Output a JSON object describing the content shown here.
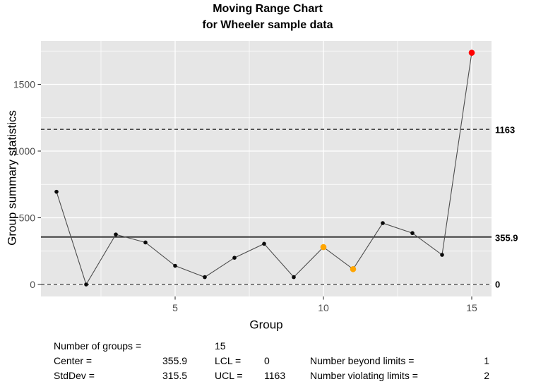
{
  "title": {
    "line1": "Moving Range Chart",
    "line2": "for Wheeler sample data"
  },
  "chart_data": {
    "type": "line",
    "title": "Moving Range Chart for Wheeler sample data",
    "xlabel": "Group",
    "ylabel": "Group summary statistics",
    "x": [
      1,
      2,
      3,
      4,
      5,
      6,
      7,
      8,
      9,
      10,
      11,
      12,
      13,
      14,
      15
    ],
    "values": [
      695,
      0,
      375,
      315,
      140,
      55,
      200,
      305,
      55,
      280,
      115,
      460,
      385,
      222,
      1737
    ],
    "point_states": [
      "normal",
      "normal",
      "normal",
      "normal",
      "normal",
      "normal",
      "normal",
      "normal",
      "normal",
      "run",
      "run",
      "normal",
      "normal",
      "normal",
      "beyond"
    ],
    "x_ticks": [
      5,
      10,
      15
    ],
    "y_ticks": [
      0,
      500,
      1000,
      1500
    ],
    "x_minor": [
      2.5,
      7.5,
      12.5
    ],
    "y_minor": [
      250,
      750,
      1250,
      1750
    ],
    "xlim": [
      1,
      15
    ],
    "ylim": [
      -90,
      1830
    ],
    "center": 355.9,
    "lcl": 0,
    "ucl": 1163,
    "limit_labels": {
      "ucl": "1163",
      "center": "355.9",
      "lcl": "0"
    },
    "grid": true,
    "legend_position": "none",
    "colors": {
      "panel_bg": "#E6E6E6",
      "grid": "#FFFFFF",
      "line": "#4D4D4D",
      "point": "#0A0A0A",
      "run": "#FFA500",
      "beyond": "#FF0000",
      "limit_line": "#111111",
      "center_line": "#222222",
      "axis_text": "#4D4D4D"
    }
  },
  "stats": {
    "n_label": "Number of groups =",
    "n_value": "15",
    "center_label": "Center =",
    "center_value": "355.9",
    "stddev_label": "StdDev =",
    "stddev_value": "315.5",
    "lcl_label": "LCL =",
    "lcl_value": "0",
    "ucl_label": "UCL =",
    "ucl_value": "1163",
    "beyond_label": "Number beyond limits =",
    "beyond_value": "1",
    "violating_label": "Number violating limits =",
    "violating_value": "2"
  }
}
